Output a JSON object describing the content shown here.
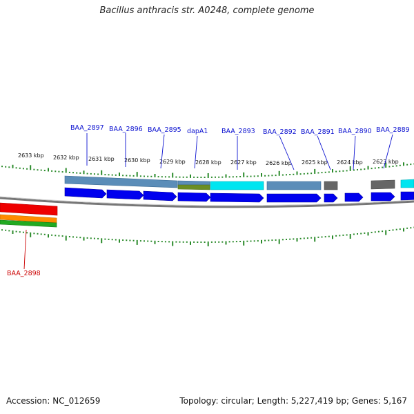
{
  "title": "Bacillus anthracis str. A0248, complete genome",
  "accession": "Accession: NC_012659",
  "summary": "Topology: circular; Length: 5,227,419 bp; Genes: 5,167",
  "colors": {
    "tick": "#2a8a2a",
    "gene_label": "#0a10d0",
    "gene_label_alt": "#cc0000",
    "cds_arrow": "#0000ee",
    "steelblue_feature": "#5b8db8",
    "cyan_feature": "#00e5f0",
    "olive_feature": "#6b8e23",
    "gray_feature": "#666666"
  },
  "ticks": [
    "2633 kbp",
    "2632 kbp",
    "2631 kbp",
    "2630 kbp",
    "2629 kbp",
    "2628 kbp",
    "2627 kbp",
    "2626 kbp",
    "2625 kbp",
    "2624 kbp",
    "2623 kbp"
  ],
  "genes": [
    "BAA_2897",
    "BAA_2896",
    "BAA_2895",
    "dapA1",
    "BAA_2893",
    "BAA_2892",
    "BAA_2891",
    "BAA_2890",
    "BAA_2889",
    "BAA_2898"
  ]
}
